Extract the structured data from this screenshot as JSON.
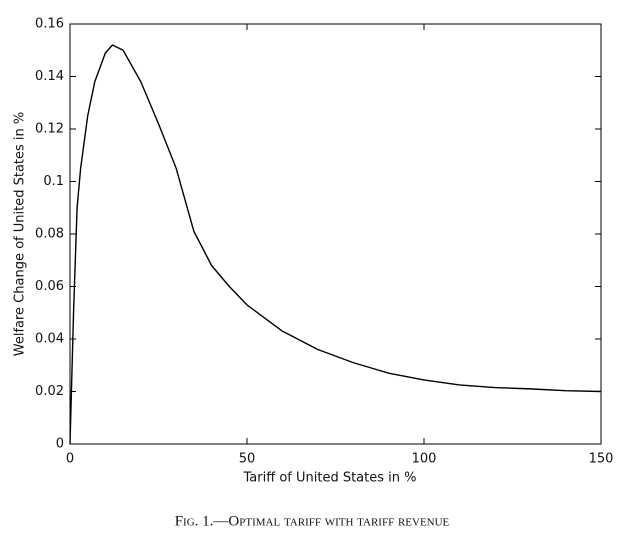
{
  "chart_data": {
    "type": "line",
    "caption": "Fig. 1.—Optimal tariff with tariff revenue",
    "x_label": "Tariff of United States in %",
    "y_label": "Welfare Change of United States in %",
    "x": [
      0,
      1,
      2,
      3,
      5,
      7,
      10,
      12,
      15,
      20,
      25,
      30,
      35,
      40,
      45,
      50,
      60,
      70,
      80,
      90,
      100,
      110,
      120,
      130,
      140,
      150
    ],
    "series": [
      {
        "color": "#000000",
        "values": [
          0,
          0.05,
          0.09,
          0.105,
          0.125,
          0.138,
          0.149,
          0.152,
          0.15,
          0.138,
          0.122,
          0.105,
          0.081,
          0.068,
          0.06,
          0.053,
          0.043,
          0.036,
          0.031,
          0.027,
          0.0244,
          0.0225,
          0.0215,
          0.021,
          0.0203,
          0.02
        ]
      }
    ],
    "xlim": [
      0,
      150
    ],
    "xticks": [
      0,
      50,
      100,
      150
    ],
    "ylim": [
      0,
      0.16
    ],
    "yticks": [
      0,
      0.02,
      0.04,
      0.06,
      0.08,
      0.1,
      0.12,
      0.14,
      0.16
    ]
  }
}
